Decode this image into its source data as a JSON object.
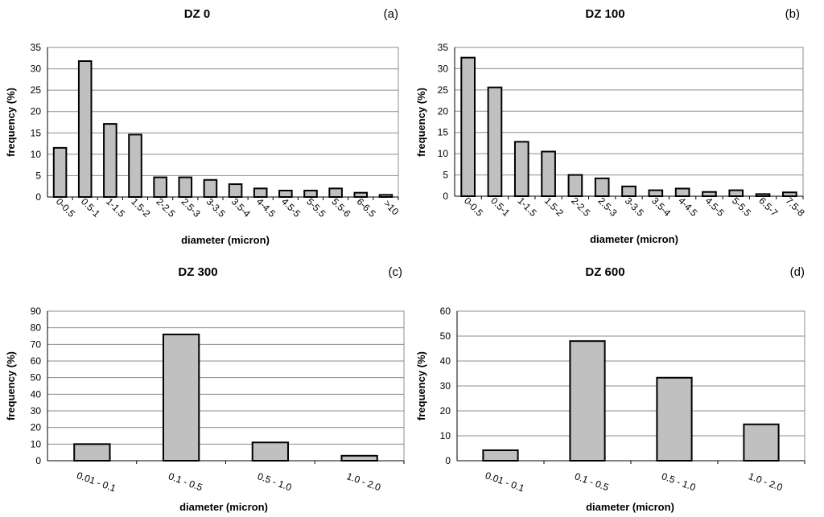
{
  "chart_data": [
    {
      "type": "bar",
      "title": "DZ 0",
      "panel_label": "(a)",
      "xlabel": "diameter (micron)",
      "ylabel": "frequency (%)",
      "ylim": [
        0,
        35
      ],
      "yticks": [
        "0",
        "5",
        "10",
        "15",
        "20",
        "25",
        "30",
        "35"
      ],
      "categories": [
        "0-0.5",
        "0.5-1",
        "1-1.5",
        "1.5-2",
        "2-2.5",
        "2.5-3",
        "3-3.5",
        "3.5-4",
        "4-4.5",
        "4.5-5",
        "5-5.5",
        "5.5-6",
        "6-6.5",
        ">10"
      ],
      "values": [
        11.5,
        31.8,
        17.1,
        14.6,
        4.6,
        4.6,
        4.0,
        3.0,
        2.0,
        1.5,
        1.5,
        2.0,
        1.0,
        0.5
      ]
    },
    {
      "type": "bar",
      "title": "DZ 100",
      "panel_label": "(b)",
      "xlabel": "diameter (micron)",
      "ylabel": "frequency (%)",
      "ylim": [
        0,
        35
      ],
      "yticks": [
        "0",
        "5",
        "10",
        "15",
        "20",
        "25",
        "30",
        "35"
      ],
      "categories": [
        "0-0.5",
        "0.5-1",
        "1-1.5",
        "1.5-2",
        "2-2.5",
        "2.5-3",
        "3-3.5",
        "3.5-4",
        "4-4.5",
        "4.5-5",
        "5-5.5",
        "6.5-7",
        "7.5-8"
      ],
      "values": [
        32.6,
        25.6,
        12.8,
        10.5,
        5.0,
        4.2,
        2.3,
        1.4,
        1.8,
        1.0,
        1.4,
        0.5,
        0.9
      ]
    },
    {
      "type": "bar",
      "title": "DZ 300",
      "panel_label": "(c)",
      "xlabel": "diameter (micron)",
      "ylabel": "frequency (%)",
      "ylim": [
        0,
        90
      ],
      "yticks": [
        "0",
        "10",
        "20",
        "30",
        "40",
        "50",
        "60",
        "70",
        "80",
        "90"
      ],
      "categories": [
        "0.01 - 0.1",
        "0.1 - 0.5",
        "0.5 - 1.0",
        "1.0 - 2.0"
      ],
      "values": [
        10,
        76,
        11,
        3
      ]
    },
    {
      "type": "bar",
      "title": "DZ 600",
      "panel_label": "(d)",
      "xlabel": "diameter (micron)",
      "ylabel": "frequency (%)",
      "ylim": [
        0,
        60
      ],
      "yticks": [
        "0",
        "10",
        "20",
        "30",
        "40",
        "50",
        "60"
      ],
      "categories": [
        "0.01 - 0.1",
        "0.1 - 0.5",
        "0.5 - 1.0",
        "1.0 - 2.0"
      ],
      "values": [
        4.2,
        48,
        33.3,
        14.6
      ]
    }
  ]
}
